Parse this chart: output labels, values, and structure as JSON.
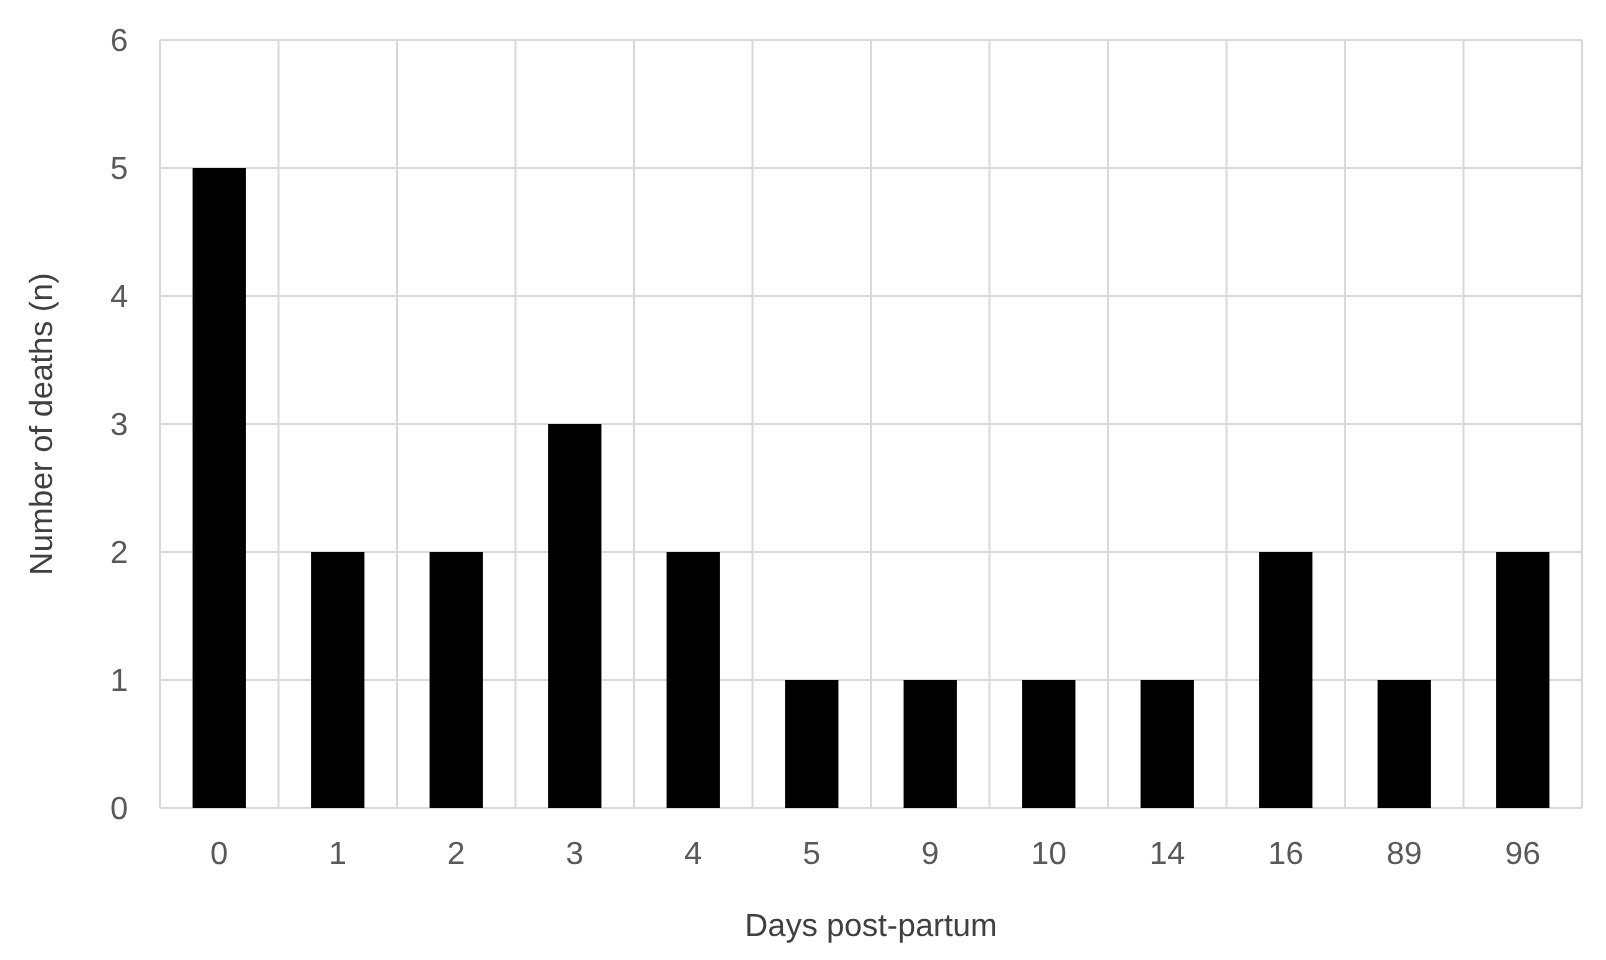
{
  "chart_data": {
    "type": "bar",
    "xlabel": "Days post-partum",
    "ylabel": "Number of deaths (n)",
    "categories": [
      "0",
      "1",
      "2",
      "3",
      "4",
      "5",
      "9",
      "10",
      "14",
      "16",
      "89",
      "96"
    ],
    "values": [
      5,
      2,
      2,
      3,
      2,
      1,
      1,
      1,
      1,
      2,
      1,
      2
    ],
    "color": "#000000",
    "ylim": [
      0,
      6
    ],
    "yticks": [
      0,
      1,
      2,
      3,
      4,
      5,
      6
    ],
    "grid": true
  }
}
